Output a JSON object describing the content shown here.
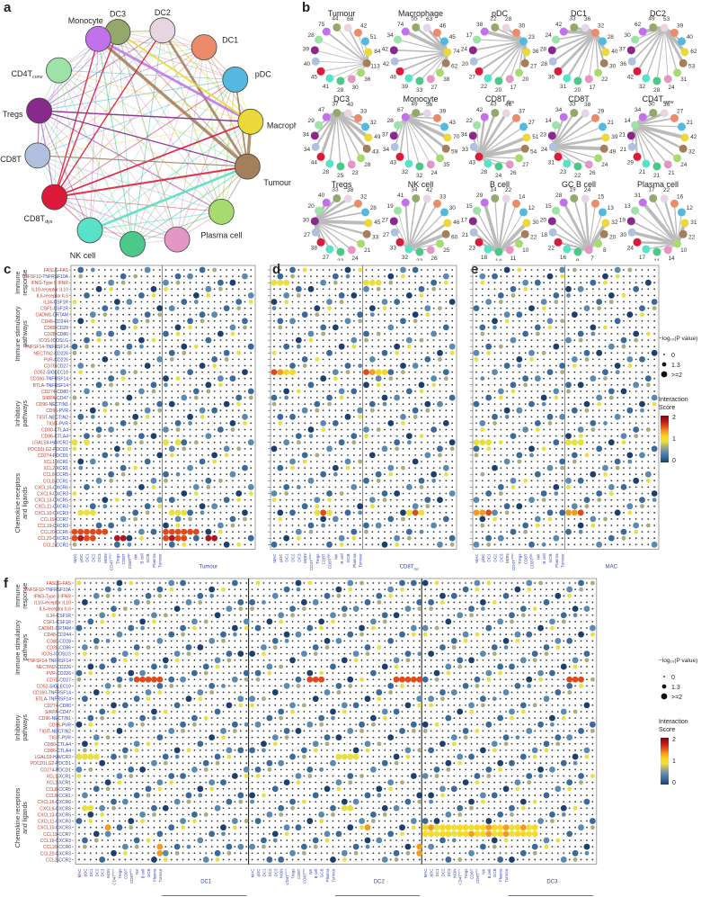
{
  "panels": {
    "a": "a",
    "b": "b",
    "c": "c",
    "d": "d",
    "e": "e",
    "f": "f"
  },
  "cell_types": [
    {
      "key": "DC3",
      "label": "DC3",
      "color": "#93a86a"
    },
    {
      "key": "DC2",
      "label": "DC2",
      "color": "#e6d6e2"
    },
    {
      "key": "DC1",
      "label": "DC1",
      "color": "#ec8a6c"
    },
    {
      "key": "pDC",
      "label": "pDC",
      "color": "#55b8de"
    },
    {
      "key": "Macrophage",
      "label": "Macrophage",
      "color": "#ecd83a"
    },
    {
      "key": "Tumour",
      "label": "Tumour",
      "color": "#a57f5c"
    },
    {
      "key": "Plasma",
      "label": "Plasma cell",
      "color": "#a6dc6e"
    },
    {
      "key": "GCB",
      "label": "GC B cell",
      "color": "#e496c4"
    },
    {
      "key": "Bcell",
      "label": "B cell",
      "color": "#4cc88a"
    },
    {
      "key": "NK",
      "label": "NK cell",
      "color": "#5ae2c8"
    },
    {
      "key": "CD8Tdys",
      "label": "CD8T",
      "sub": "dys",
      "color": "#de1a3a"
    },
    {
      "key": "CD8T",
      "label": "CD8T",
      "color": "#b0c0de"
    },
    {
      "key": "Tregs",
      "label": "Tregs",
      "color": "#882a8c"
    },
    {
      "key": "CD4Tconv",
      "label": "CD4T",
      "sub": "conv",
      "color": "#9ee2a8"
    },
    {
      "key": "Monocyte",
      "label": "Monocyte",
      "color": "#c172ea"
    }
  ],
  "network_a": {
    "strong_edges": [
      {
        "from": "Monocyte",
        "to": "Tumour",
        "color": "#a57f5c",
        "weight": 5
      },
      {
        "from": "DC2",
        "to": "Tumour",
        "color": "#a57f5c",
        "weight": 4
      },
      {
        "from": "Macrophage",
        "to": "Tumour",
        "color": "#a57f5c",
        "weight": 5
      },
      {
        "from": "Monocyte",
        "to": "Macrophage",
        "color": "#c172ea",
        "weight": 4
      },
      {
        "from": "DC3",
        "to": "Macrophage",
        "color": "#ecd83a",
        "weight": 3
      },
      {
        "from": "CD8Tdys",
        "to": "Tumour",
        "color": "#de1a3a",
        "weight": 3
      },
      {
        "from": "CD8Tdys",
        "to": "Macrophage",
        "color": "#de1a3a",
        "weight": 2.5
      },
      {
        "from": "NK",
        "to": "Tumour",
        "color": "#5ae2c8",
        "weight": 4
      },
      {
        "from": "Tregs",
        "to": "Macrophage",
        "color": "#882a8c",
        "weight": 2
      },
      {
        "from": "CD8Tdys",
        "to": "DC2",
        "color": "#de1a3a",
        "weight": 2
      },
      {
        "from": "CD8Tdys",
        "to": "Monocyte",
        "color": "#de1a3a",
        "weight": 2
      },
      {
        "from": "CD8Tdys",
        "to": "DC3",
        "color": "#de1a3a",
        "weight": 2
      },
      {
        "from": "Tregs",
        "to": "Tumour",
        "color": "#882a8c",
        "weight": 1.8
      },
      {
        "from": "CD8T",
        "to": "Tumour",
        "color": "#a57f5c",
        "weight": 1.6
      },
      {
        "from": "pDC",
        "to": "Tumour",
        "color": "#a57f5c",
        "weight": 2.5
      }
    ]
  },
  "mini_networks": [
    {
      "title": "Tumour",
      "center": "Tumour",
      "counts": {
        "DC3": 44,
        "DC2": 68,
        "DC1": 42,
        "pDC": 51,
        "Macrophage": 84,
        "Tumour": 113,
        "Plasma": 36,
        "GCB": 30,
        "Bcell": 28,
        "NK": 41,
        "CD8Tdys": 45,
        "CD8T": 40,
        "Tregs": 39,
        "CD4Tconv": 28,
        "Monocyte": 75
      }
    },
    {
      "title": "Macrophage",
      "center": "Macrophage",
      "counts": {
        "DC3": 55,
        "DC2": 63,
        "DC1": 46,
        "pDC": 45,
        "Macrophage": 74,
        "Tumour": 62,
        "Plasma": 38,
        "GCB": 27,
        "Bcell": 33,
        "NK": 39,
        "CD8Tdys": 48,
        "CD8T": 42,
        "Tregs": 42,
        "CD4Tconv": 34,
        "Monocyte": 74
      }
    },
    {
      "title": "pDC",
      "center": "pDC",
      "counts": {
        "DC3": 22,
        "DC2": 28,
        "DC1": 30,
        "pDC": 23,
        "Macrophage": 36,
        "Tumour": 27,
        "Plasma": 20,
        "GCB": 17,
        "Bcell": 20,
        "NK": 22,
        "CD8Tdys": 27,
        "CD8T": 20,
        "Tregs": 24,
        "CD4Tconv": 17,
        "Monocyte": 38
      }
    },
    {
      "title": "DC1",
      "center": "DC1",
      "counts": {
        "DC3": 33,
        "DC2": 36,
        "DC1": 32,
        "pDC": 28,
        "Macrophage": 40,
        "Tumour": 30,
        "Plasma": 22,
        "GCB": 17,
        "Bcell": 20,
        "NK": 31,
        "CD8Tdys": 36,
        "CD8T": 28,
        "Tregs": 28,
        "CD4Tconv": 24,
        "Monocyte": 42
      }
    },
    {
      "title": "DC2",
      "center": "DC2",
      "counts": {
        "DC3": 49,
        "DC2": 53,
        "DC1": 39,
        "pDC": 40,
        "Macrophage": 62,
        "Tumour": 53,
        "Plasma": 31,
        "GCB": 24,
        "Bcell": 28,
        "NK": 32,
        "CD8Tdys": 42,
        "CD8T": 36,
        "Tregs": 37,
        "CD4Tconv": 30,
        "Monocyte": 62
      }
    },
    {
      "title": "DC3",
      "center": "DC3",
      "counts": {
        "DC3": 37,
        "DC2": 40,
        "DC1": 33,
        "pDC": 32,
        "Macrophage": 49,
        "Tumour": 43,
        "Plasma": 28,
        "GCB": 23,
        "Bcell": 25,
        "NK": 28,
        "CD8Tdys": 44,
        "CD8T": 34,
        "Tregs": 34,
        "CD4Tconv": 29,
        "Monocyte": 47
      }
    },
    {
      "title": "Monocyte",
      "center": "Monocyte",
      "counts": {
        "DC3": 49,
        "DC2": 56,
        "DC1": 39,
        "pDC": 43,
        "Macrophage": 70,
        "Tumour": 59,
        "Plasma": 35,
        "GCB": 24,
        "Bcell": 32,
        "NK": 32,
        "CD8Tdys": 43,
        "CD8T": 34,
        "Tregs": 37,
        "CD4Tconv": 28,
        "Monocyte": 67
      }
    },
    {
      "title": "CD8T",
      "title_sub": "dys",
      "center": "CD8Tdys",
      "counts": {
        "DC3": 43,
        "DC2": 46,
        "DC1": 37,
        "pDC": 27,
        "Macrophage": 51,
        "Tumour": 54,
        "Plasma": 27,
        "GCB": 26,
        "Bcell": 24,
        "NK": 28,
        "CD8Tdys": 43,
        "CD8T": 33,
        "Tregs": 34,
        "CD4Tconv": 22,
        "Monocyte": 42
      }
    },
    {
      "title": "CD8T",
      "center": "CD8T",
      "counts": {
        "DC3": 33,
        "DC2": 38,
        "DC1": 29,
        "pDC": 21,
        "Macrophage": 39,
        "Tumour": 49,
        "Plasma": 24,
        "GCB": 26,
        "Bcell": 22,
        "NK": 23,
        "CD8Tdys": 31,
        "CD8T": 24,
        "Tregs": 23,
        "CD4Tconv": 14,
        "Monocyte": 34
      }
    },
    {
      "title": "CD4T",
      "title_sub": "conv",
      "center": "CD4Tconv",
      "counts": {
        "DC3": 30,
        "DC2": 36,
        "DC1": 27,
        "pDC": 21,
        "Macrophage": 42,
        "Tumour": 32,
        "Plasma": 24,
        "GCB": 21,
        "Bcell": 21,
        "NK": 21,
        "CD8Tdys": 29,
        "CD8T": 21,
        "Tregs": 21,
        "CD4Tconv": 14,
        "Monocyte": 34
      }
    },
    {
      "title": "Tregs",
      "center": "Tregs",
      "counts": {
        "DC3": 33,
        "DC2": 38,
        "DC1": 32,
        "pDC": 28,
        "Macrophage": 45,
        "Tumour": 33,
        "Plasma": 21,
        "GCB": 24,
        "Bcell": 22,
        "NK": 27,
        "CD8Tdys": 38,
        "CD8T": 27,
        "Tregs": 30,
        "CD4Tconv": 20,
        "Monocyte": 40
      }
    },
    {
      "title": "NK cell",
      "center": "NK",
      "counts": {
        "DC3": 34,
        "DC2": 42,
        "DC1": 33,
        "pDC": 30,
        "Macrophage": 46,
        "Tumour": 60,
        "Plasma": 25,
        "GCB": 26,
        "Bcell": 22,
        "NK": 32,
        "CD8Tdys": 33,
        "CD8T": 27,
        "Tregs": 27,
        "CD4Tconv": 19,
        "Monocyte": 41
      }
    },
    {
      "title": "B cell",
      "center": "Bcell",
      "counts": {
        "DC3": 14,
        "DC2": 22,
        "DC1": 14,
        "pDC": 12,
        "Macrophage": 30,
        "Tumour": 22,
        "Plasma": 10,
        "GCB": 11,
        "Bcell": 14,
        "NK": 18,
        "CD8Tdys": 23,
        "CD8T": 21,
        "Tregs": 17,
        "CD4Tconv": 15,
        "Monocyte": 29
      }
    },
    {
      "title": "GC B cell",
      "center": "GCB",
      "counts": {
        "DC3": 19,
        "DC2": 24,
        "DC1": 15,
        "pDC": 13,
        "Macrophage": 32,
        "Tumour": 20,
        "Plasma": 8,
        "GCB": 7,
        "Bcell": 9,
        "NK": 16,
        "CD8Tdys": 22,
        "CD8T": 18,
        "Tregs": 20,
        "CD4Tconv": 15,
        "Monocyte": 28
      }
    },
    {
      "title": "Plasma cell",
      "center": "Plasma",
      "counts": {
        "DC3": 17,
        "DC2": 22,
        "DC1": 16,
        "pDC": 12,
        "Macrophage": 31,
        "Tumour": 22,
        "Plasma": 10,
        "GCB": 14,
        "Bcell": 11,
        "NK": 17,
        "CD8Tdys": 24,
        "CD8T": 30,
        "Tregs": 19,
        "CD4Tconv": 13,
        "Monocyte": 31
      }
    }
  ],
  "dotplot_rows_cde": [
    {
      "lig": "FASLG",
      "rec": "FAS",
      "lc": "r",
      "rc": "r"
    },
    {
      "lig": "TNFSF10",
      "rec": "TNFRSF10A",
      "lc": "r",
      "rc": "b"
    },
    {
      "lig": "IFNG",
      "rec": "Type II IFNR",
      "lc": "r",
      "rc": "r"
    },
    {
      "lig": "IL10",
      "rec": "receptor IL10",
      "lc": "r",
      "rc": "r"
    },
    {
      "lig": "IL6",
      "rec": "receptor IL6",
      "lc": "r",
      "rc": "r"
    },
    {
      "lig": "IL34",
      "rec": "CSF1R",
      "lc": "r",
      "rc": "b"
    },
    {
      "lig": "CSF1",
      "rec": "CSF1R",
      "lc": "r",
      "rc": "b"
    },
    {
      "lig": "CADM1",
      "rec": "CRTAM",
      "lc": "r",
      "rc": "b"
    },
    {
      "lig": "CD48",
      "rec": "CD244",
      "lc": "r",
      "rc": "b"
    },
    {
      "lig": "CD80",
      "rec": "CD28",
      "lc": "r",
      "rc": "b"
    },
    {
      "lig": "CD28",
      "rec": "CD86",
      "lc": "r",
      "rc": "b"
    },
    {
      "lig": "ICOS",
      "rec": "ICOSLG",
      "lc": "r",
      "rc": "b"
    },
    {
      "lig": "TNFSF14",
      "rec": "TNFRSF14",
      "lc": "r",
      "rc": "b"
    },
    {
      "lig": "NECTIN2",
      "rec": "CD226",
      "lc": "r",
      "rc": "b"
    },
    {
      "lig": "PVR",
      "rec": "CD226",
      "lc": "r",
      "rc": "b"
    },
    {
      "lig": "CD70",
      "rec": "CD27",
      "lc": "r",
      "rc": "b"
    },
    {
      "lig": "CD52",
      "rec": "SIGLEC10",
      "lc": "r",
      "rc": "b"
    },
    {
      "lig": "CD160",
      "rec": "TNFRSF14",
      "lc": "r",
      "rc": "b"
    },
    {
      "lig": "BTLA",
      "rec": "TNFRSF14",
      "lc": "r",
      "rc": "b"
    },
    {
      "lig": "CD274",
      "rec": "CD80",
      "lc": "r",
      "rc": "b"
    },
    {
      "lig": "SIRPA",
      "rec": "CD47",
      "lc": "r",
      "rc": "b"
    },
    {
      "lig": "CD96",
      "rec": "NECTIN1",
      "lc": "r",
      "rc": "b"
    },
    {
      "lig": "CD96",
      "rec": "PVR",
      "lc": "r",
      "rc": "b"
    },
    {
      "lig": "TIGIT",
      "rec": "NECTIN2",
      "lc": "r",
      "rc": "b"
    },
    {
      "lig": "TIGIT",
      "rec": "PVR",
      "lc": "r",
      "rc": "b"
    },
    {
      "lig": "CD80",
      "rec": "CTLA4",
      "lc": "r",
      "rc": "b"
    },
    {
      "lig": "CD86",
      "rec": "CTLA4",
      "lc": "r",
      "rc": "b"
    },
    {
      "lig": "LGALS9",
      "rec": "HAVCR2",
      "lc": "r",
      "rc": "b"
    },
    {
      "lig": "PDCD1LG2",
      "rec": "PDCD1",
      "lc": "r",
      "rc": "b"
    },
    {
      "lig": "CD274",
      "rec": "PDCD1",
      "lc": "r",
      "rc": "b"
    },
    {
      "lig": "XCL1",
      "rec": "XCR1",
      "lc": "r",
      "rc": "b"
    },
    {
      "lig": "XCL2",
      "rec": "XCR1",
      "lc": "r",
      "rc": "b"
    },
    {
      "lig": "CCL8",
      "rec": "CCR5",
      "lc": "r",
      "rc": "b"
    },
    {
      "lig": "CCL8",
      "rec": "CCR1",
      "lc": "r",
      "rc": "b"
    },
    {
      "lig": "CXCL16",
      "rec": "CXCR6",
      "lc": "r",
      "rc": "b"
    },
    {
      "lig": "CXCL9",
      "rec": "CXCR3",
      "lc": "r",
      "rc": "b"
    },
    {
      "lig": "CXCL13",
      "rec": "CXCR5",
      "lc": "r",
      "rc": "b"
    },
    {
      "lig": "CXCL11",
      "rec": "CXCR3",
      "lc": "r",
      "rc": "b"
    },
    {
      "lig": "CXCL10",
      "rec": "CXCR3",
      "lc": "r",
      "rc": "b"
    },
    {
      "lig": "CCL19",
      "rec": "CCR7",
      "lc": "r",
      "rc": "b"
    },
    {
      "lig": "CCL19",
      "rec": "CXCR3",
      "lc": "r",
      "rc": "b"
    },
    {
      "lig": "CCL20",
      "rec": "CCR6",
      "lc": "r",
      "rc": "b"
    },
    {
      "lig": "CCL20",
      "rec": "CXCR3",
      "lc": "r",
      "rc": "b"
    },
    {
      "lig": "CCL2",
      "rec": "CCR2",
      "lc": "r",
      "rc": "b"
    }
  ],
  "dotplot_groups": [
    {
      "label": "Immune\nresponse",
      "rows": 5
    },
    {
      "label": "Immune stimulatory\npathways",
      "rows": 11
    },
    {
      "label": "Inhibitory\npathways",
      "rows": 14
    },
    {
      "label": "Chemokine receptors\nand ligands",
      "rows": 14
    }
  ],
  "dotplot_columns": [
    "MAC",
    "pDC",
    "DC1",
    "DC2",
    "DC3",
    "MON",
    "CD4T_conv",
    "Tregs",
    "CD8T",
    "CD8T_dys",
    "NK",
    "B cell",
    "GCB",
    "Plasma",
    "Tumour"
  ],
  "dotplot_panels": {
    "c": {
      "sender_label": "Tumour",
      "receiver_label": "Tumour"
    },
    "d": {
      "sender_label": "CD8T",
      "sender_sub": "dys",
      "receiver_label": "CD8T",
      "receiver_sub": "dys"
    },
    "e": {
      "sender_label": "MAC",
      "receiver_label": "MAC"
    },
    "f": {
      "blocks": [
        {
          "sender_label": "DC1",
          "receiver_label": "DC1"
        },
        {
          "sender_label": "DC2",
          "receiver_label": "DC2"
        },
        {
          "sender_label": "DC3",
          "receiver_label": "DC3"
        }
      ]
    }
  },
  "legend": {
    "pvalue_title": "−log₁₀(P value)",
    "pvalue_levels": [
      "0",
      "1.3",
      ">=2"
    ],
    "score_title_1": "Interaction",
    "score_title_2": "Score",
    "score_ticks": [
      "2",
      "1",
      "0"
    ],
    "score_range": [
      0,
      2
    ],
    "colormap": [
      "#1d3f6e",
      "#3a6a99",
      "#5a8ab0",
      "#a8aa80",
      "#e8e040",
      "#f8d820",
      "#f59a20",
      "#e04a1a",
      "#b4141c",
      "#7a0a14"
    ]
  },
  "colors": {
    "ligand_red": "#c0392b",
    "receptor_blue": "#2f3fbf",
    "axis": "#444444",
    "sender_label": "#c0392b",
    "receiver_label": "#2f3fbf"
  }
}
